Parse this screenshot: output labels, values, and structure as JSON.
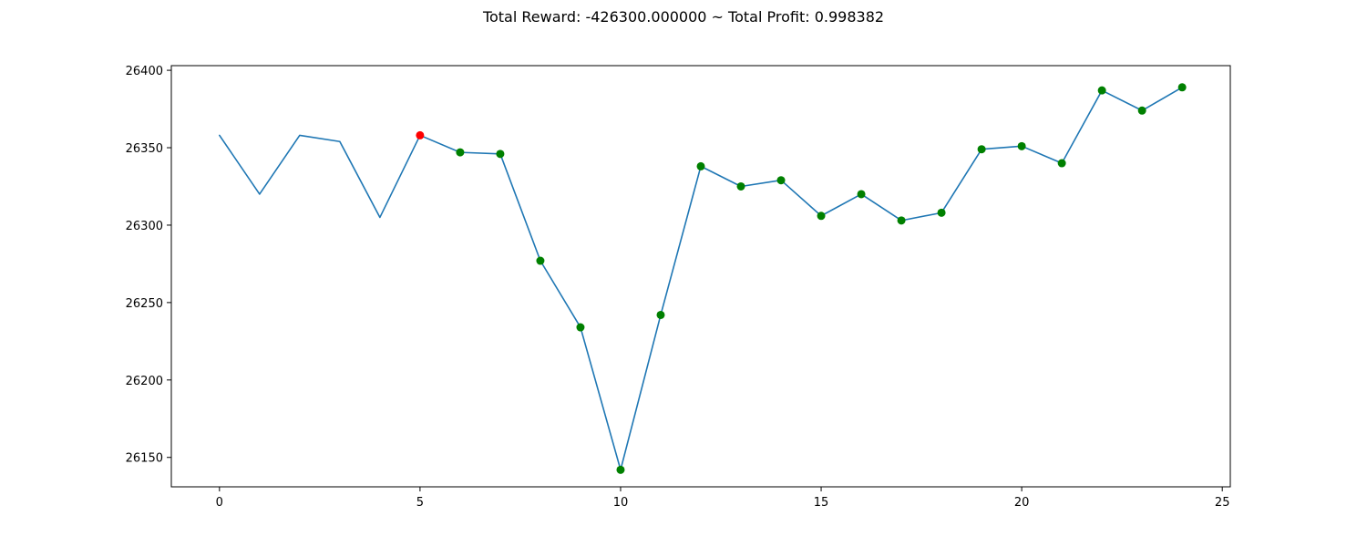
{
  "chart_data": {
    "type": "line",
    "title": "Total Reward: -426300.000000 ~ Total Profit: 0.998382",
    "xlabel": "",
    "ylabel": "",
    "xlim": [
      -1.2,
      25.2
    ],
    "ylim": [
      26131,
      26403
    ],
    "xticks": [
      0,
      5,
      10,
      15,
      20,
      25
    ],
    "yticks": [
      26150,
      26200,
      26250,
      26300,
      26350,
      26400
    ],
    "grid": false,
    "x": [
      0,
      1,
      2,
      3,
      4,
      5,
      6,
      7,
      8,
      9,
      10,
      11,
      12,
      13,
      14,
      15,
      16,
      17,
      18,
      19,
      20,
      21,
      22,
      23,
      24
    ],
    "series": [
      {
        "values": [
          26358,
          26320,
          26358,
          26354,
          26305,
          26358,
          26347,
          26346,
          26277,
          26234,
          26142,
          26242,
          26338,
          26325,
          26329,
          26306,
          26320,
          26303,
          26308,
          26349,
          26351,
          26340,
          26387,
          26374,
          26389
        ]
      }
    ],
    "markers": [
      {
        "x": 5,
        "y": 26358,
        "color": "#ff0000"
      },
      {
        "x": 6,
        "y": 26347,
        "color": "#008000"
      },
      {
        "x": 7,
        "y": 26346,
        "color": "#008000"
      },
      {
        "x": 8,
        "y": 26277,
        "color": "#008000"
      },
      {
        "x": 9,
        "y": 26234,
        "color": "#008000"
      },
      {
        "x": 10,
        "y": 26142,
        "color": "#008000"
      },
      {
        "x": 11,
        "y": 26242,
        "color": "#008000"
      },
      {
        "x": 12,
        "y": 26338,
        "color": "#008000"
      },
      {
        "x": 13,
        "y": 26325,
        "color": "#008000"
      },
      {
        "x": 14,
        "y": 26329,
        "color": "#008000"
      },
      {
        "x": 15,
        "y": 26306,
        "color": "#008000"
      },
      {
        "x": 16,
        "y": 26320,
        "color": "#008000"
      },
      {
        "x": 17,
        "y": 26303,
        "color": "#008000"
      },
      {
        "x": 18,
        "y": 26308,
        "color": "#008000"
      },
      {
        "x": 19,
        "y": 26349,
        "color": "#008000"
      },
      {
        "x": 20,
        "y": 26351,
        "color": "#008000"
      },
      {
        "x": 21,
        "y": 26340,
        "color": "#008000"
      },
      {
        "x": 22,
        "y": 26387,
        "color": "#008000"
      },
      {
        "x": 23,
        "y": 26374,
        "color": "#008000"
      },
      {
        "x": 24,
        "y": 26389,
        "color": "#008000"
      }
    ],
    "line_color": "#1f77b4"
  }
}
